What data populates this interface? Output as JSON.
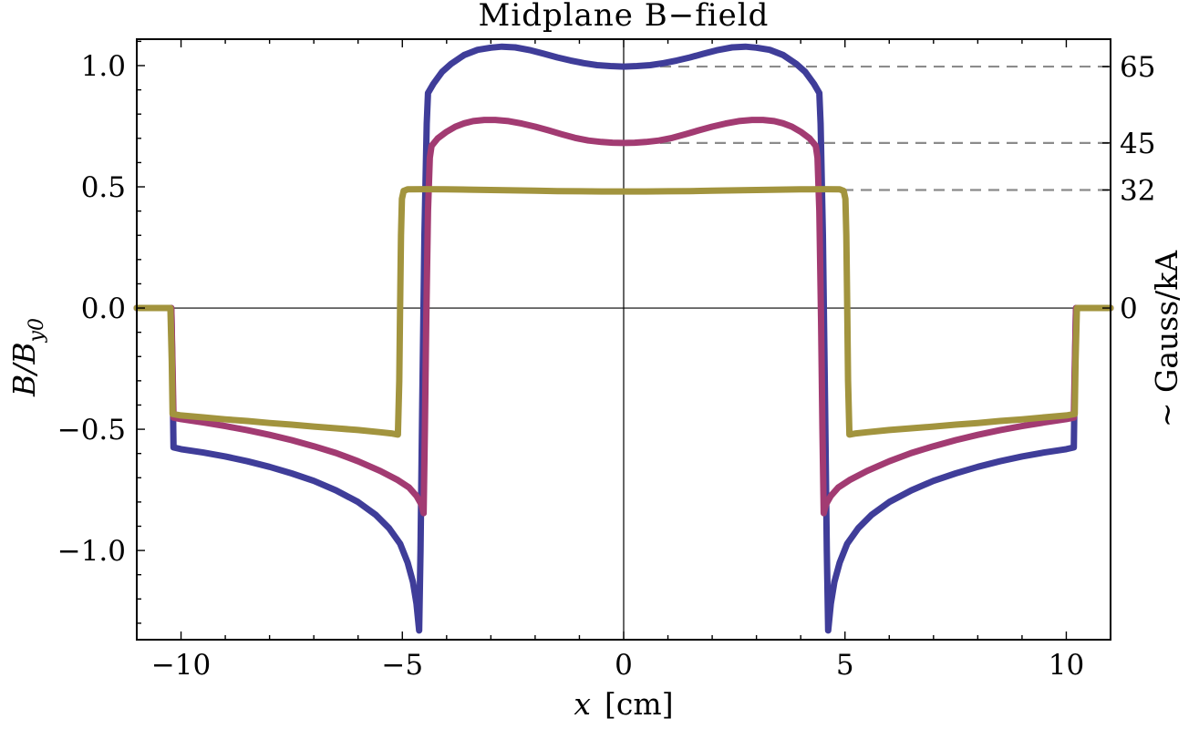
{
  "chart_data": {
    "type": "line",
    "title": "Midplane B−field",
    "xlabel": {
      "variable": "x",
      "unit": "[cm]"
    },
    "ylabel_left": {
      "main": "B/B",
      "sub": "y0"
    },
    "ylabel_right": "~ Gauss/kA",
    "xlim": [
      -11,
      11
    ],
    "ylim": [
      -1.368,
      1.109
    ],
    "grid": false,
    "legend": false,
    "axis_color": "#000000",
    "reference_color": "#8b8b8b",
    "x_ticks": [
      {
        "v": -10,
        "label": "−10"
      },
      {
        "v": -5,
        "label": "−5"
      },
      {
        "v": 0,
        "label": "0"
      },
      {
        "v": 5,
        "label": "5"
      },
      {
        "v": 10,
        "label": "10"
      }
    ],
    "x_minor_step": 1,
    "y_ticks": [
      {
        "v": -1.0,
        "label": "−1.0"
      },
      {
        "v": -0.5,
        "label": "−0.5"
      },
      {
        "v": 0.0,
        "label": "0.0"
      },
      {
        "v": 0.5,
        "label": "0.5"
      },
      {
        "v": 1.0,
        "label": "1.0"
      }
    ],
    "y_minor_step": 0.1,
    "right_ticks": [
      {
        "v": 0.996,
        "label": "65"
      },
      {
        "v": 0.681,
        "label": "45"
      },
      {
        "v": 0.487,
        "label": "32"
      },
      {
        "v": 0.0,
        "label": "0"
      }
    ],
    "reference_lines": [
      {
        "level": 0.996,
        "x1": 0,
        "x2": 11
      },
      {
        "level": 0.681,
        "x1": 0,
        "x2": 11
      },
      {
        "level": 0.487,
        "x1": 0,
        "x2": 11
      }
    ],
    "series": [
      {
        "name": "65",
        "color": "#3F3D99",
        "points": [
          [
            -11,
            0
          ],
          [
            -10.22,
            0
          ],
          [
            -10.19,
            -0.3
          ],
          [
            -10.17,
            -0.575
          ],
          [
            -10,
            -0.582
          ],
          [
            -9.5,
            -0.596
          ],
          [
            -9,
            -0.612
          ],
          [
            -8.5,
            -0.632
          ],
          [
            -8,
            -0.655
          ],
          [
            -7.5,
            -0.682
          ],
          [
            -7,
            -0.713
          ],
          [
            -6.5,
            -0.752
          ],
          [
            -6,
            -0.8
          ],
          [
            -5.6,
            -0.853
          ],
          [
            -5.3,
            -0.908
          ],
          [
            -5.05,
            -0.972
          ],
          [
            -4.88,
            -1.05
          ],
          [
            -4.76,
            -1.13
          ],
          [
            -4.68,
            -1.22
          ],
          [
            -4.62,
            -1.33
          ],
          [
            -4.59,
            -1.0
          ],
          [
            -4.55,
            -0.4
          ],
          [
            -4.5,
            0.3
          ],
          [
            -4.45,
            0.76
          ],
          [
            -4.42,
            0.887
          ],
          [
            -4.3,
            0.925
          ],
          [
            -4.1,
            0.975
          ],
          [
            -3.9,
            1.007
          ],
          [
            -3.6,
            1.044
          ],
          [
            -3.3,
            1.065
          ],
          [
            -3,
            1.074
          ],
          [
            -2.75,
            1.078
          ],
          [
            -2.45,
            1.075
          ],
          [
            -2.1,
            1.063
          ],
          [
            -1.8,
            1.049
          ],
          [
            -1.5,
            1.034
          ],
          [
            -1.2,
            1.021
          ],
          [
            -0.9,
            1.01
          ],
          [
            -0.6,
            1.002
          ],
          [
            -0.3,
            0.998
          ],
          [
            0,
            0.996
          ],
          [
            0.3,
            0.998
          ],
          [
            0.6,
            1.002
          ],
          [
            0.9,
            1.01
          ],
          [
            1.2,
            1.021
          ],
          [
            1.5,
            1.034
          ],
          [
            1.8,
            1.049
          ],
          [
            2.1,
            1.063
          ],
          [
            2.45,
            1.075
          ],
          [
            2.75,
            1.078
          ],
          [
            3,
            1.074
          ],
          [
            3.3,
            1.065
          ],
          [
            3.6,
            1.044
          ],
          [
            3.9,
            1.007
          ],
          [
            4.1,
            0.975
          ],
          [
            4.3,
            0.925
          ],
          [
            4.42,
            0.887
          ],
          [
            4.45,
            0.76
          ],
          [
            4.5,
            0.3
          ],
          [
            4.55,
            -0.4
          ],
          [
            4.59,
            -1.0
          ],
          [
            4.62,
            -1.33
          ],
          [
            4.68,
            -1.22
          ],
          [
            4.76,
            -1.13
          ],
          [
            4.88,
            -1.05
          ],
          [
            5.05,
            -0.972
          ],
          [
            5.3,
            -0.908
          ],
          [
            5.6,
            -0.853
          ],
          [
            6,
            -0.8
          ],
          [
            6.5,
            -0.752
          ],
          [
            7,
            -0.713
          ],
          [
            7.5,
            -0.682
          ],
          [
            8,
            -0.655
          ],
          [
            8.5,
            -0.632
          ],
          [
            9,
            -0.612
          ],
          [
            9.5,
            -0.596
          ],
          [
            10,
            -0.582
          ],
          [
            10.17,
            -0.575
          ],
          [
            10.19,
            -0.3
          ],
          [
            10.22,
            0
          ],
          [
            11,
            0
          ]
        ]
      },
      {
        "name": "45",
        "color": "#A23B72",
        "points": [
          [
            -11,
            0
          ],
          [
            -10.22,
            0
          ],
          [
            -10.19,
            -0.25
          ],
          [
            -10.17,
            -0.452
          ],
          [
            -10,
            -0.458
          ],
          [
            -9.5,
            -0.472
          ],
          [
            -9,
            -0.487
          ],
          [
            -8.5,
            -0.504
          ],
          [
            -8,
            -0.523
          ],
          [
            -7.5,
            -0.545
          ],
          [
            -7,
            -0.57
          ],
          [
            -6.5,
            -0.598
          ],
          [
            -6,
            -0.632
          ],
          [
            -5.5,
            -0.672
          ],
          [
            -5.1,
            -0.71
          ],
          [
            -4.85,
            -0.74
          ],
          [
            -4.68,
            -0.775
          ],
          [
            -4.57,
            -0.81
          ],
          [
            -4.52,
            -0.846
          ],
          [
            -4.49,
            -0.5
          ],
          [
            -4.46,
            -0.05
          ],
          [
            -4.42,
            0.4
          ],
          [
            -4.38,
            0.62
          ],
          [
            -4.34,
            0.669
          ],
          [
            -4.2,
            0.7
          ],
          [
            -4,
            0.727
          ],
          [
            -3.8,
            0.748
          ],
          [
            -3.6,
            0.762
          ],
          [
            -3.4,
            0.771
          ],
          [
            -3.15,
            0.776
          ],
          [
            -2.9,
            0.776
          ],
          [
            -2.6,
            0.771
          ],
          [
            -2.3,
            0.761
          ],
          [
            -2,
            0.748
          ],
          [
            -1.7,
            0.733
          ],
          [
            -1.4,
            0.717
          ],
          [
            -1.1,
            0.702
          ],
          [
            -0.8,
            0.691
          ],
          [
            -0.5,
            0.685
          ],
          [
            -0.25,
            0.682
          ],
          [
            0,
            0.681
          ],
          [
            0.25,
            0.682
          ],
          [
            0.5,
            0.685
          ],
          [
            0.8,
            0.691
          ],
          [
            1.1,
            0.702
          ],
          [
            1.4,
            0.717
          ],
          [
            1.7,
            0.733
          ],
          [
            2,
            0.748
          ],
          [
            2.3,
            0.761
          ],
          [
            2.6,
            0.771
          ],
          [
            2.9,
            0.776
          ],
          [
            3.15,
            0.776
          ],
          [
            3.4,
            0.771
          ],
          [
            3.6,
            0.762
          ],
          [
            3.8,
            0.748
          ],
          [
            4,
            0.727
          ],
          [
            4.2,
            0.7
          ],
          [
            4.34,
            0.669
          ],
          [
            4.38,
            0.62
          ],
          [
            4.42,
            0.4
          ],
          [
            4.46,
            -0.05
          ],
          [
            4.49,
            -0.5
          ],
          [
            4.52,
            -0.846
          ],
          [
            4.57,
            -0.81
          ],
          [
            4.68,
            -0.775
          ],
          [
            4.85,
            -0.74
          ],
          [
            5.1,
            -0.71
          ],
          [
            5.5,
            -0.672
          ],
          [
            6,
            -0.632
          ],
          [
            6.5,
            -0.598
          ],
          [
            7,
            -0.57
          ],
          [
            7.5,
            -0.545
          ],
          [
            8,
            -0.523
          ],
          [
            8.5,
            -0.504
          ],
          [
            9,
            -0.487
          ],
          [
            9.5,
            -0.472
          ],
          [
            10,
            -0.458
          ],
          [
            10.17,
            -0.452
          ],
          [
            10.19,
            -0.25
          ],
          [
            10.22,
            0
          ],
          [
            11,
            0
          ]
        ]
      },
      {
        "name": "32",
        "color": "#A2943E",
        "points": [
          [
            -11,
            0
          ],
          [
            -10.24,
            0
          ],
          [
            -10.21,
            -0.22
          ],
          [
            -10.19,
            -0.437
          ],
          [
            -10,
            -0.443
          ],
          [
            -9.5,
            -0.451
          ],
          [
            -9,
            -0.459
          ],
          [
            -8.5,
            -0.466
          ],
          [
            -8,
            -0.474
          ],
          [
            -7.5,
            -0.481
          ],
          [
            -7,
            -0.489
          ],
          [
            -6.5,
            -0.496
          ],
          [
            -6,
            -0.503
          ],
          [
            -5.5,
            -0.512
          ],
          [
            -5.25,
            -0.517
          ],
          [
            -5.1,
            -0.522
          ],
          [
            -5.07,
            -0.3
          ],
          [
            -5.05,
            0
          ],
          [
            -5.03,
            0.3
          ],
          [
            -5.01,
            0.45
          ],
          [
            -4.97,
            0.483
          ],
          [
            -4.88,
            0.49
          ],
          [
            -4.5,
            0.4905
          ],
          [
            -4,
            0.4895
          ],
          [
            -3.5,
            0.4885
          ],
          [
            -3,
            0.487
          ],
          [
            -2.5,
            0.4855
          ],
          [
            -2,
            0.484
          ],
          [
            -1.5,
            0.4825
          ],
          [
            -1,
            0.4815
          ],
          [
            -0.5,
            0.481
          ],
          [
            0,
            0.481
          ],
          [
            0.5,
            0.481
          ],
          [
            1,
            0.4815
          ],
          [
            1.5,
            0.4825
          ],
          [
            2,
            0.484
          ],
          [
            2.5,
            0.4855
          ],
          [
            3,
            0.487
          ],
          [
            3.5,
            0.4885
          ],
          [
            4,
            0.4895
          ],
          [
            4.5,
            0.4905
          ],
          [
            4.88,
            0.49
          ],
          [
            4.97,
            0.483
          ],
          [
            5.01,
            0.45
          ],
          [
            5.03,
            0.3
          ],
          [
            5.05,
            0
          ],
          [
            5.07,
            -0.3
          ],
          [
            5.1,
            -0.522
          ],
          [
            5.25,
            -0.517
          ],
          [
            5.5,
            -0.512
          ],
          [
            6,
            -0.503
          ],
          [
            6.5,
            -0.496
          ],
          [
            7,
            -0.489
          ],
          [
            7.5,
            -0.481
          ],
          [
            8,
            -0.474
          ],
          [
            8.5,
            -0.466
          ],
          [
            9,
            -0.459
          ],
          [
            9.5,
            -0.451
          ],
          [
            10,
            -0.443
          ],
          [
            10.19,
            -0.437
          ],
          [
            10.21,
            -0.22
          ],
          [
            10.24,
            0
          ],
          [
            11,
            0
          ]
        ]
      }
    ]
  }
}
